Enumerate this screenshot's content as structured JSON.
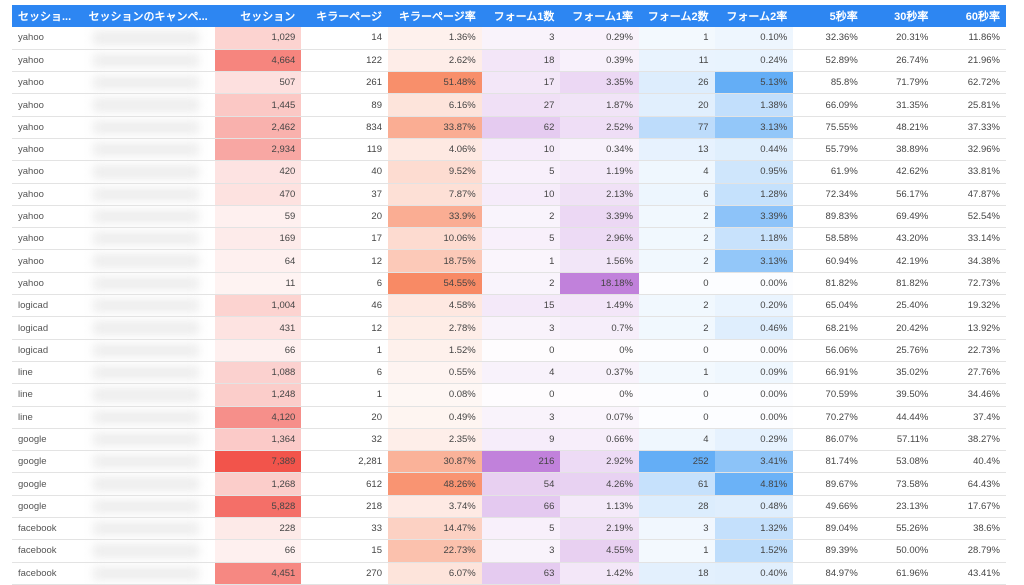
{
  "table": {
    "headers": [
      "セッショ...",
      "セッションのキャンペ...",
      "セッション",
      "キラーページ",
      "キラーページ率",
      "フォーム1数",
      "フォーム1率",
      "フォーム2数",
      "フォーム2率",
      "5秒率",
      "30秒率",
      "60秒率"
    ],
    "colors": {
      "header_bg": "#2d86f2",
      "sessions": "#f03c32",
      "killer": "#f77a50",
      "form1": "#b870d6",
      "form2": "#4fa3f5"
    },
    "rows": [
      {
        "source": "yahoo",
        "sessions": "1,029",
        "killer": "14",
        "killer_rate": "1.36%",
        "form1": "3",
        "form1_rate": "0.29%",
        "form2": "1",
        "form2_rate": "0.10%",
        "r5": "32.36%",
        "r30": "20.31%",
        "r60": "11.86%"
      },
      {
        "source": "yahoo",
        "sessions": "4,664",
        "killer": "122",
        "killer_rate": "2.62%",
        "form1": "18",
        "form1_rate": "0.39%",
        "form2": "11",
        "form2_rate": "0.24%",
        "r5": "52.89%",
        "r30": "26.74%",
        "r60": "21.96%"
      },
      {
        "source": "yahoo",
        "sessions": "507",
        "killer": "261",
        "killer_rate": "51.48%",
        "form1": "17",
        "form1_rate": "3.35%",
        "form2": "26",
        "form2_rate": "5.13%",
        "r5": "85.8%",
        "r30": "71.79%",
        "r60": "62.72%"
      },
      {
        "source": "yahoo",
        "sessions": "1,445",
        "killer": "89",
        "killer_rate": "6.16%",
        "form1": "27",
        "form1_rate": "1.87%",
        "form2": "20",
        "form2_rate": "1.38%",
        "r5": "66.09%",
        "r30": "31.35%",
        "r60": "25.81%"
      },
      {
        "source": "yahoo",
        "sessions": "2,462",
        "killer": "834",
        "killer_rate": "33.87%",
        "form1": "62",
        "form1_rate": "2.52%",
        "form2": "77",
        "form2_rate": "3.13%",
        "r5": "75.55%",
        "r30": "48.21%",
        "r60": "37.33%"
      },
      {
        "source": "yahoo",
        "sessions": "2,934",
        "killer": "119",
        "killer_rate": "4.06%",
        "form1": "10",
        "form1_rate": "0.34%",
        "form2": "13",
        "form2_rate": "0.44%",
        "r5": "55.79%",
        "r30": "38.89%",
        "r60": "32.96%"
      },
      {
        "source": "yahoo",
        "sessions": "420",
        "killer": "40",
        "killer_rate": "9.52%",
        "form1": "5",
        "form1_rate": "1.19%",
        "form2": "4",
        "form2_rate": "0.95%",
        "r5": "61.9%",
        "r30": "42.62%",
        "r60": "33.81%"
      },
      {
        "source": "yahoo",
        "sessions": "470",
        "killer": "37",
        "killer_rate": "7.87%",
        "form1": "10",
        "form1_rate": "2.13%",
        "form2": "6",
        "form2_rate": "1.28%",
        "r5": "72.34%",
        "r30": "56.17%",
        "r60": "47.87%"
      },
      {
        "source": "yahoo",
        "sessions": "59",
        "killer": "20",
        "killer_rate": "33.9%",
        "form1": "2",
        "form1_rate": "3.39%",
        "form2": "2",
        "form2_rate": "3.39%",
        "r5": "89.83%",
        "r30": "69.49%",
        "r60": "52.54%"
      },
      {
        "source": "yahoo",
        "sessions": "169",
        "killer": "17",
        "killer_rate": "10.06%",
        "form1": "5",
        "form1_rate": "2.96%",
        "form2": "2",
        "form2_rate": "1.18%",
        "r5": "58.58%",
        "r30": "43.20%",
        "r60": "33.14%"
      },
      {
        "source": "yahoo",
        "sessions": "64",
        "killer": "12",
        "killer_rate": "18.75%",
        "form1": "1",
        "form1_rate": "1.56%",
        "form2": "2",
        "form2_rate": "3.13%",
        "r5": "60.94%",
        "r30": "42.19%",
        "r60": "34.38%"
      },
      {
        "source": "yahoo",
        "sessions": "11",
        "killer": "6",
        "killer_rate": "54.55%",
        "form1": "2",
        "form1_rate": "18.18%",
        "form2": "0",
        "form2_rate": "0.00%",
        "r5": "81.82%",
        "r30": "81.82%",
        "r60": "72.73%"
      },
      {
        "source": "logicad",
        "sessions": "1,004",
        "killer": "46",
        "killer_rate": "4.58%",
        "form1": "15",
        "form1_rate": "1.49%",
        "form2": "2",
        "form2_rate": "0.20%",
        "r5": "65.04%",
        "r30": "25.40%",
        "r60": "19.32%"
      },
      {
        "source": "logicad",
        "sessions": "431",
        "killer": "12",
        "killer_rate": "2.78%",
        "form1": "3",
        "form1_rate": "0.7%",
        "form2": "2",
        "form2_rate": "0.46%",
        "r5": "68.21%",
        "r30": "20.42%",
        "r60": "13.92%"
      },
      {
        "source": "logicad",
        "sessions": "66",
        "killer": "1",
        "killer_rate": "1.52%",
        "form1": "0",
        "form1_rate": "0%",
        "form2": "0",
        "form2_rate": "0.00%",
        "r5": "56.06%",
        "r30": "25.76%",
        "r60": "22.73%"
      },
      {
        "source": "line",
        "sessions": "1,088",
        "killer": "6",
        "killer_rate": "0.55%",
        "form1": "4",
        "form1_rate": "0.37%",
        "form2": "1",
        "form2_rate": "0.09%",
        "r5": "66.91%",
        "r30": "35.02%",
        "r60": "27.76%"
      },
      {
        "source": "line",
        "sessions": "1,248",
        "killer": "1",
        "killer_rate": "0.08%",
        "form1": "0",
        "form1_rate": "0%",
        "form2": "0",
        "form2_rate": "0.00%",
        "r5": "70.59%",
        "r30": "39.50%",
        "r60": "34.46%"
      },
      {
        "source": "line",
        "sessions": "4,120",
        "killer": "20",
        "killer_rate": "0.49%",
        "form1": "3",
        "form1_rate": "0.07%",
        "form2": "0",
        "form2_rate": "0.00%",
        "r5": "70.27%",
        "r30": "44.44%",
        "r60": "37.4%"
      },
      {
        "source": "google",
        "sessions": "1,364",
        "killer": "32",
        "killer_rate": "2.35%",
        "form1": "9",
        "form1_rate": "0.66%",
        "form2": "4",
        "form2_rate": "0.29%",
        "r5": "86.07%",
        "r30": "57.11%",
        "r60": "38.27%"
      },
      {
        "source": "google",
        "sessions": "7,389",
        "killer": "2,281",
        "killer_rate": "30.87%",
        "form1": "216",
        "form1_rate": "2.92%",
        "form2": "252",
        "form2_rate": "3.41%",
        "r5": "81.74%",
        "r30": "53.08%",
        "r60": "40.4%"
      },
      {
        "source": "google",
        "sessions": "1,268",
        "killer": "612",
        "killer_rate": "48.26%",
        "form1": "54",
        "form1_rate": "4.26%",
        "form2": "61",
        "form2_rate": "4.81%",
        "r5": "89.67%",
        "r30": "73.58%",
        "r60": "64.43%"
      },
      {
        "source": "google",
        "sessions": "5,828",
        "killer": "218",
        "killer_rate": "3.74%",
        "form1": "66",
        "form1_rate": "1.13%",
        "form2": "28",
        "form2_rate": "0.48%",
        "r5": "49.66%",
        "r30": "23.13%",
        "r60": "17.67%"
      },
      {
        "source": "facebook",
        "sessions": "228",
        "killer": "33",
        "killer_rate": "14.47%",
        "form1": "5",
        "form1_rate": "2.19%",
        "form2": "3",
        "form2_rate": "1.32%",
        "r5": "89.04%",
        "r30": "55.26%",
        "r60": "38.6%"
      },
      {
        "source": "facebook",
        "sessions": "66",
        "killer": "15",
        "killer_rate": "22.73%",
        "form1": "3",
        "form1_rate": "4.55%",
        "form2": "1",
        "form2_rate": "1.52%",
        "r5": "89.39%",
        "r30": "50.00%",
        "r60": "28.79%"
      },
      {
        "source": "facebook",
        "sessions": "4,451",
        "killer": "270",
        "killer_rate": "6.07%",
        "form1": "63",
        "form1_rate": "1.42%",
        "form2": "18",
        "form2_rate": "0.40%",
        "r5": "84.97%",
        "r30": "61.96%",
        "r60": "43.41%"
      }
    ]
  }
}
